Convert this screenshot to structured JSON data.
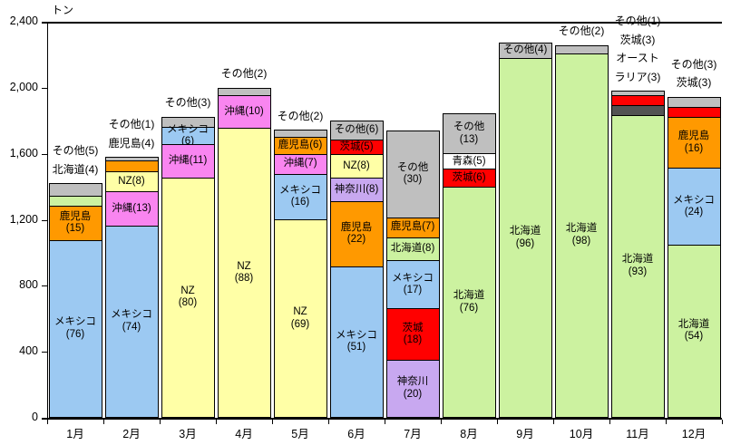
{
  "chart_data": {
    "type": "bar",
    "stacked": true,
    "title": "",
    "unit_label": "トン",
    "xlabel": "",
    "ylabel": "トン",
    "grid": false,
    "legend": "none (labels on segments)",
    "y_axis": {
      "min": 0,
      "max": 2400,
      "step": 400,
      "tick_labels": [
        "0",
        "400",
        "800",
        "1,200",
        "1,600",
        "2,000",
        "2,400"
      ]
    },
    "categories": [
      "1月",
      "2月",
      "3月",
      "4月",
      "5月",
      "6月",
      "7月",
      "8月",
      "9月",
      "10月",
      "11月",
      "12月"
    ],
    "regions": {
      "mexico": {
        "name": "メキシコ",
        "color": "#9CC9F2"
      },
      "kagoshima": {
        "name": "鹿児島",
        "color": "#FF9900"
      },
      "hokkaido": {
        "name": "北海道",
        "color": "#CCF2A0"
      },
      "nz": {
        "name": "NZ",
        "color": "#FFFFA6"
      },
      "okinawa": {
        "name": "沖縄",
        "color": "#F985F0"
      },
      "ibaraki": {
        "name": "茨城",
        "color": "#FF0000"
      },
      "kanagawa": {
        "name": "神奈川",
        "color": "#C8A8F0"
      },
      "aomori": {
        "name": "青森",
        "color": "#FFFFFF"
      },
      "australia": {
        "name": "オーストラリア",
        "color": "#535353"
      },
      "others": {
        "name": "その他",
        "color": "#BFBFBF"
      }
    },
    "months": [
      {
        "month": "1月",
        "total_tons": 1420,
        "segments": [
          {
            "region": "mexico",
            "pct": 76,
            "label": "メキシコ\n(76)"
          },
          {
            "region": "kagoshima",
            "pct": 15,
            "label": "鹿児島\n(15)"
          },
          {
            "region": "hokkaido",
            "pct": 4,
            "label": ""
          },
          {
            "region": "others",
            "pct": 5,
            "label": ""
          }
        ],
        "labels_above": [
          "その他(5)",
          "北海道(4)"
        ]
      },
      {
        "month": "2月",
        "total_tons": 1580,
        "segments": [
          {
            "region": "mexico",
            "pct": 74,
            "label": "メキシコ\n(74)"
          },
          {
            "region": "okinawa",
            "pct": 13,
            "label": "沖縄(13)"
          },
          {
            "region": "nz",
            "pct": 8,
            "label": "NZ(8)"
          },
          {
            "region": "kagoshima",
            "pct": 4,
            "label": ""
          },
          {
            "region": "others",
            "pct": 1,
            "label": ""
          }
        ],
        "labels_above": [
          "その他(1)",
          "鹿児島(4)"
        ]
      },
      {
        "month": "3月",
        "total_tons": 1825,
        "segments": [
          {
            "region": "nz",
            "pct": 80,
            "label": "NZ\n(80)"
          },
          {
            "region": "okinawa",
            "pct": 11,
            "label": "沖縄(11)"
          },
          {
            "region": "mexico",
            "pct": 6,
            "label": "メキシコ(6)"
          },
          {
            "region": "others",
            "pct": 3,
            "label": ""
          }
        ],
        "labels_above": [
          "その他(3)"
        ]
      },
      {
        "month": "4月",
        "total_tons": 2000,
        "segments": [
          {
            "region": "nz",
            "pct": 88,
            "label": "NZ\n(88)"
          },
          {
            "region": "okinawa",
            "pct": 10,
            "label": "沖縄(10)"
          },
          {
            "region": "others",
            "pct": 2,
            "label": ""
          }
        ],
        "labels_above": [
          "その他(2)"
        ]
      },
      {
        "month": "5月",
        "total_tons": 1745,
        "segments": [
          {
            "region": "nz",
            "pct": 69,
            "label": "NZ\n(69)"
          },
          {
            "region": "mexico",
            "pct": 16,
            "label": "メキシコ\n(16)"
          },
          {
            "region": "okinawa",
            "pct": 7,
            "label": "沖縄(7)"
          },
          {
            "region": "kagoshima",
            "pct": 6,
            "label": "鹿児島(6)"
          },
          {
            "region": "others",
            "pct": 2,
            "label": ""
          }
        ],
        "labels_above": [
          "その他(2)"
        ]
      },
      {
        "month": "6月",
        "total_tons": 1800,
        "segments": [
          {
            "region": "mexico",
            "pct": 51,
            "label": "メキシコ\n(51)"
          },
          {
            "region": "kagoshima",
            "pct": 22,
            "label": "鹿児島\n(22)"
          },
          {
            "region": "kanagawa",
            "pct": 8,
            "label": "神奈川(8)"
          },
          {
            "region": "nz",
            "pct": 8,
            "label": "NZ(8)"
          },
          {
            "region": "ibaraki",
            "pct": 5,
            "label": "茨城(5)"
          },
          {
            "region": "others",
            "pct": 6,
            "label": "その他(6)"
          }
        ],
        "labels_above": []
      },
      {
        "month": "7月",
        "total_tons": 1740,
        "segments": [
          {
            "region": "kanagawa",
            "pct": 20,
            "label": "神奈川\n(20)"
          },
          {
            "region": "ibaraki",
            "pct": 18,
            "label": "茨城\n(18)"
          },
          {
            "region": "mexico",
            "pct": 17,
            "label": "メキシコ\n(17)"
          },
          {
            "region": "hokkaido",
            "pct": 8,
            "label": "北海道(8)"
          },
          {
            "region": "kagoshima",
            "pct": 7,
            "label": "鹿児島(7)"
          },
          {
            "region": "others",
            "pct": 30,
            "label": "その他\n(30)"
          }
        ],
        "labels_above": []
      },
      {
        "month": "8月",
        "total_tons": 1845,
        "segments": [
          {
            "region": "hokkaido",
            "pct": 76,
            "label": "北海道\n(76)"
          },
          {
            "region": "ibaraki",
            "pct": 6,
            "label": "茨城(6)"
          },
          {
            "region": "aomori",
            "pct": 5,
            "label": "青森(5)"
          },
          {
            "region": "others",
            "pct": 13,
            "label": "その他\n(13)"
          }
        ],
        "labels_above": []
      },
      {
        "month": "9月",
        "total_tons": 2275,
        "segments": [
          {
            "region": "hokkaido",
            "pct": 96,
            "label": "北海道\n(96)"
          },
          {
            "region": "others",
            "pct": 4,
            "label": "その他(4)"
          }
        ],
        "labels_above": []
      },
      {
        "month": "10月",
        "total_tons": 2260,
        "segments": [
          {
            "region": "hokkaido",
            "pct": 98,
            "label": "北海道\n(98)"
          },
          {
            "region": "others",
            "pct": 2,
            "label": ""
          }
        ],
        "labels_above": [
          "その他(2)"
        ]
      },
      {
        "month": "11月",
        "total_tons": 1980,
        "segments": [
          {
            "region": "hokkaido",
            "pct": 93,
            "label": "北海道\n(93)"
          },
          {
            "region": "australia",
            "pct": 3,
            "label": ""
          },
          {
            "region": "ibaraki",
            "pct": 3,
            "label": ""
          },
          {
            "region": "others",
            "pct": 1,
            "label": ""
          }
        ],
        "labels_above": [
          "その他(1)",
          "茨城(3)",
          "オースト\nラリア(3)"
        ]
      },
      {
        "month": "12月",
        "total_tons": 1945,
        "segments": [
          {
            "region": "hokkaido",
            "pct": 54,
            "label": "北海道\n(54)"
          },
          {
            "region": "mexico",
            "pct": 24,
            "label": "メキシコ\n(24)"
          },
          {
            "region": "kagoshima",
            "pct": 16,
            "label": "鹿児島\n(16)"
          },
          {
            "region": "ibaraki",
            "pct": 3,
            "label": ""
          },
          {
            "region": "others",
            "pct": 3,
            "label": ""
          }
        ],
        "labels_above": [
          "その他(3)",
          "茨城(3)"
        ]
      }
    ]
  }
}
